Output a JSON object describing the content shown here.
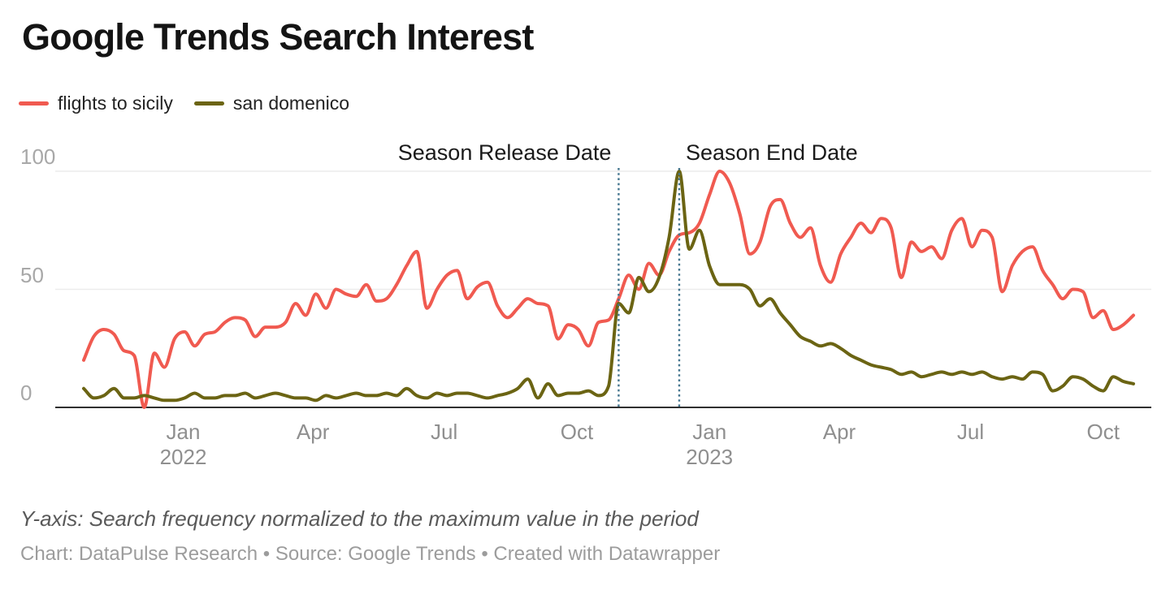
{
  "title": "Google Trends Search Interest",
  "legend": [
    {
      "label": "flights to sicily",
      "color": "#f05a50"
    },
    {
      "label": "san domenico",
      "color": "#6b6413"
    }
  ],
  "footer": {
    "note": "Y-axis: Search frequency normalized to the maximum value in the period",
    "byline": "Chart: DataPulse Research • Source: Google Trends • Created with Datawrapper"
  },
  "colors": {
    "gridline": "#ececec",
    "axis_baseline": "#303030",
    "y_label": "#a8a8a8",
    "x_label": "#8f8f8f",
    "annotation_text": "#1a1a1a",
    "annotation_line": "#45768f"
  },
  "chart_data": {
    "type": "line",
    "title": "Google Trends Search Interest",
    "ylabel": "Search frequency normalized to the maximum value in the period",
    "ylim": [
      0,
      100
    ],
    "y_ticks": [
      0,
      50,
      100
    ],
    "grid": "horizontal-only",
    "legend_position": "top-left",
    "x_unit": "weeks (Oct 2021 – Nov 2023, one point per week)",
    "x_ticks": [
      {
        "label": "Jan",
        "year": "2022",
        "week": 9.86
      },
      {
        "label": "Apr",
        "week": 22.71
      },
      {
        "label": "Jul",
        "week": 35.71
      },
      {
        "label": "Oct",
        "week": 48.86
      },
      {
        "label": "Jan",
        "year": "2023",
        "week": 62.0
      },
      {
        "label": "Apr",
        "week": 74.86
      },
      {
        "label": "Jul",
        "week": 87.86
      },
      {
        "label": "Oct",
        "week": 101.0
      }
    ],
    "series": [
      {
        "name": "flights to sicily",
        "color": "#f05a50",
        "values": [
          20,
          30,
          33,
          31,
          24,
          22,
          0,
          23,
          17,
          29,
          32,
          26,
          31,
          32,
          36,
          38,
          37,
          30,
          34,
          34,
          36,
          44,
          39,
          48,
          42,
          50,
          48,
          47,
          52,
          45,
          46,
          52,
          60,
          66,
          42,
          50,
          56,
          58,
          46,
          51,
          53,
          43,
          38,
          42,
          46,
          44,
          43,
          29,
          35,
          33,
          26,
          36,
          37,
          46,
          56,
          50,
          61,
          56,
          66,
          73,
          74,
          78,
          90,
          100,
          95,
          82,
          65,
          70,
          85,
          88,
          78,
          72,
          76,
          60,
          53,
          65,
          72,
          78,
          74,
          80,
          76,
          55,
          70,
          66,
          68,
          63,
          75,
          80,
          68,
          75,
          72,
          49,
          60,
          66,
          68,
          58,
          52,
          46,
          50,
          49,
          38,
          41,
          33,
          35,
          39
        ]
      },
      {
        "name": "san domenico",
        "color": "#6b6413",
        "values": [
          8,
          4,
          5,
          8,
          4,
          4,
          5,
          4,
          3,
          3,
          4,
          6,
          4,
          4,
          5,
          5,
          6,
          4,
          5,
          6,
          5,
          4,
          4,
          3,
          5,
          4,
          5,
          6,
          5,
          5,
          6,
          5,
          8,
          5,
          4,
          6,
          5,
          6,
          6,
          5,
          4,
          5,
          6,
          8,
          12,
          4,
          10,
          5,
          6,
          6,
          7,
          5,
          9,
          44,
          40,
          55,
          49,
          55,
          72,
          100,
          67,
          75,
          60,
          52,
          52,
          52,
          50,
          43,
          46,
          40,
          35,
          30,
          28,
          26,
          27,
          25,
          22,
          20,
          18,
          17,
          16,
          14,
          15,
          13,
          14,
          15,
          14,
          15,
          14,
          15,
          13,
          12,
          13,
          12,
          15,
          14,
          7,
          9,
          13,
          12,
          9,
          7,
          13,
          11,
          10
        ]
      }
    ],
    "annotations": {
      "vline_color": "#45768f",
      "items": [
        {
          "label": "Season Release Date",
          "week": 53,
          "align": "left-of-line"
        },
        {
          "label": "Season End Date",
          "week": 59,
          "align": "right-of-line"
        }
      ]
    }
  }
}
